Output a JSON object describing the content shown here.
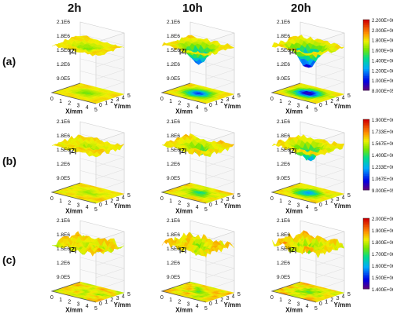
{
  "figure": {
    "column_headers": [
      "2h",
      "10h",
      "20h"
    ],
    "row_labels": [
      "(a)",
      "(b)",
      "(c)"
    ]
  },
  "chart_data": {
    "type": "heatmap",
    "panel_axes": {
      "z_label": "|Z|",
      "z_ticks": [
        "9.0E5",
        "1.2E6",
        "1.5E6",
        "1.8E6",
        "2.1E6"
      ],
      "x_label": "X/mm",
      "y_label": "Y/mm",
      "x_ticks": [
        "0",
        "1",
        "2",
        "3",
        "4",
        "5"
      ],
      "y_ticks": [
        "0",
        "1",
        "2",
        "3",
        "4",
        "5"
      ]
    },
    "rows": [
      {
        "label": "(a)",
        "colorbar": [
          "2.200E+06",
          "2.000E+06",
          "1.800E+06",
          "1.600E+06",
          "1.400E+06",
          "1.200E+06",
          "1.000E+06",
          "8.000E+05"
        ],
        "panels": [
          {
            "time": "2h",
            "description_depth": 0.15,
            "rough": 0.05
          },
          {
            "time": "10h",
            "description_depth": 0.55,
            "rough": 0.06
          },
          {
            "time": "20h",
            "description_depth": 0.75,
            "rough": 0.07
          }
        ]
      },
      {
        "label": "(b)",
        "colorbar": [
          "1.900E+06",
          "1.733E+06",
          "1.567E+06",
          "1.400E+06",
          "1.233E+06",
          "1.067E+06",
          "9.000E+05"
        ],
        "panels": [
          {
            "time": "2h",
            "description_depth": 0.1,
            "rough": 0.08
          },
          {
            "time": "10h",
            "description_depth": 0.25,
            "rough": 0.09
          },
          {
            "time": "20h",
            "description_depth": 0.45,
            "rough": 0.08
          }
        ]
      },
      {
        "label": "(c)",
        "colorbar": [
          "2.000E+06",
          "1.900E+06",
          "1.800E+06",
          "1.700E+06",
          "1.600E+06",
          "1.500E+06",
          "1.400E+06"
        ],
        "panels": [
          {
            "time": "2h",
            "description_depth": 0.1,
            "rough": 0.13
          },
          {
            "time": "10h",
            "description_depth": 0.12,
            "rough": 0.14
          },
          {
            "time": "20h",
            "description_depth": 0.15,
            "rough": 0.15
          }
        ]
      }
    ]
  }
}
